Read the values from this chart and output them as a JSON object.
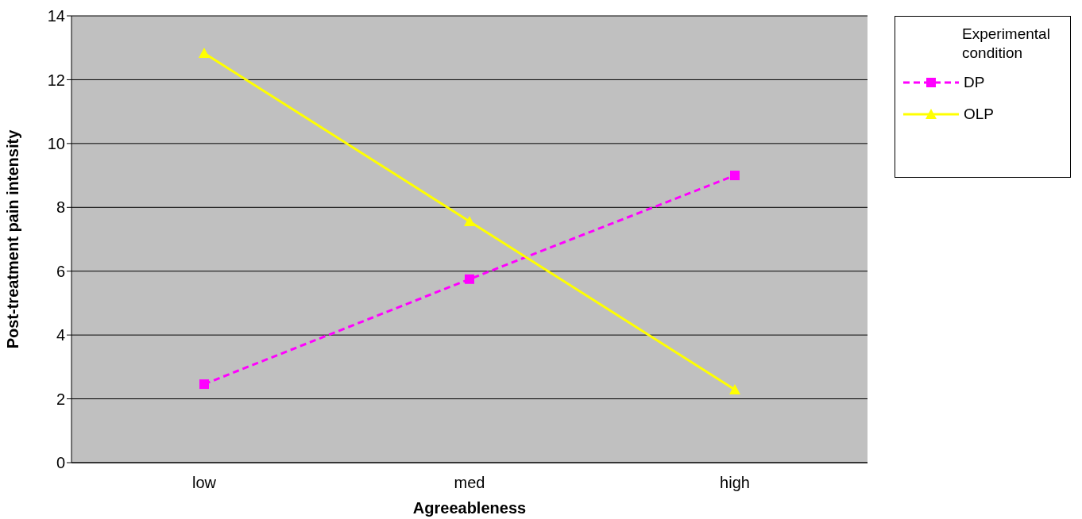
{
  "chart_data": {
    "type": "line",
    "xlabel": "Agreeableness",
    "ylabel": "Post-treatment pain intensity",
    "legend_title": "Experimental condition",
    "categories": [
      "low",
      "med",
      "high"
    ],
    "series": [
      {
        "name": "DP",
        "color": "#ff00ff",
        "values": [
          2.46,
          5.75,
          9.0
        ],
        "marker": "square",
        "line_style": "dashed"
      },
      {
        "name": "OLP",
        "color": "#ffff00",
        "values": [
          12.83,
          7.56,
          2.29
        ],
        "marker": "triangle",
        "line_style": "solid"
      }
    ],
    "ylim": [
      0,
      14
    ],
    "yticks": [
      0,
      2,
      4,
      6,
      8,
      10,
      12,
      14
    ],
    "grid": "y",
    "legend": "top right"
  }
}
